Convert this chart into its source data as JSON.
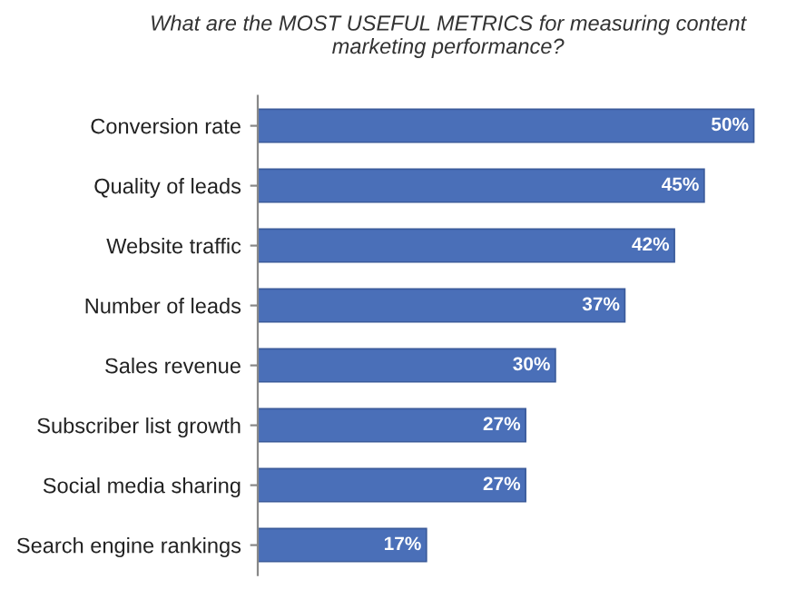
{
  "chart_data": {
    "type": "bar",
    "orientation": "horizontal",
    "title": "What are the MOST USEFUL METRICS for measuring content marketing performance?",
    "categories": [
      "Conversion rate",
      "Quality of leads",
      "Website traffic",
      "Number of leads",
      "Sales revenue",
      "Subscriber list growth",
      "Social media sharing",
      "Search engine rankings"
    ],
    "values": [
      50,
      45,
      42,
      37,
      30,
      27,
      27,
      17
    ],
    "value_labels": [
      "50%",
      "45%",
      "42%",
      "37%",
      "30%",
      "27%",
      "27%",
      "17%"
    ],
    "color": "#4a6fb8",
    "grid": false,
    "legend": false
  }
}
